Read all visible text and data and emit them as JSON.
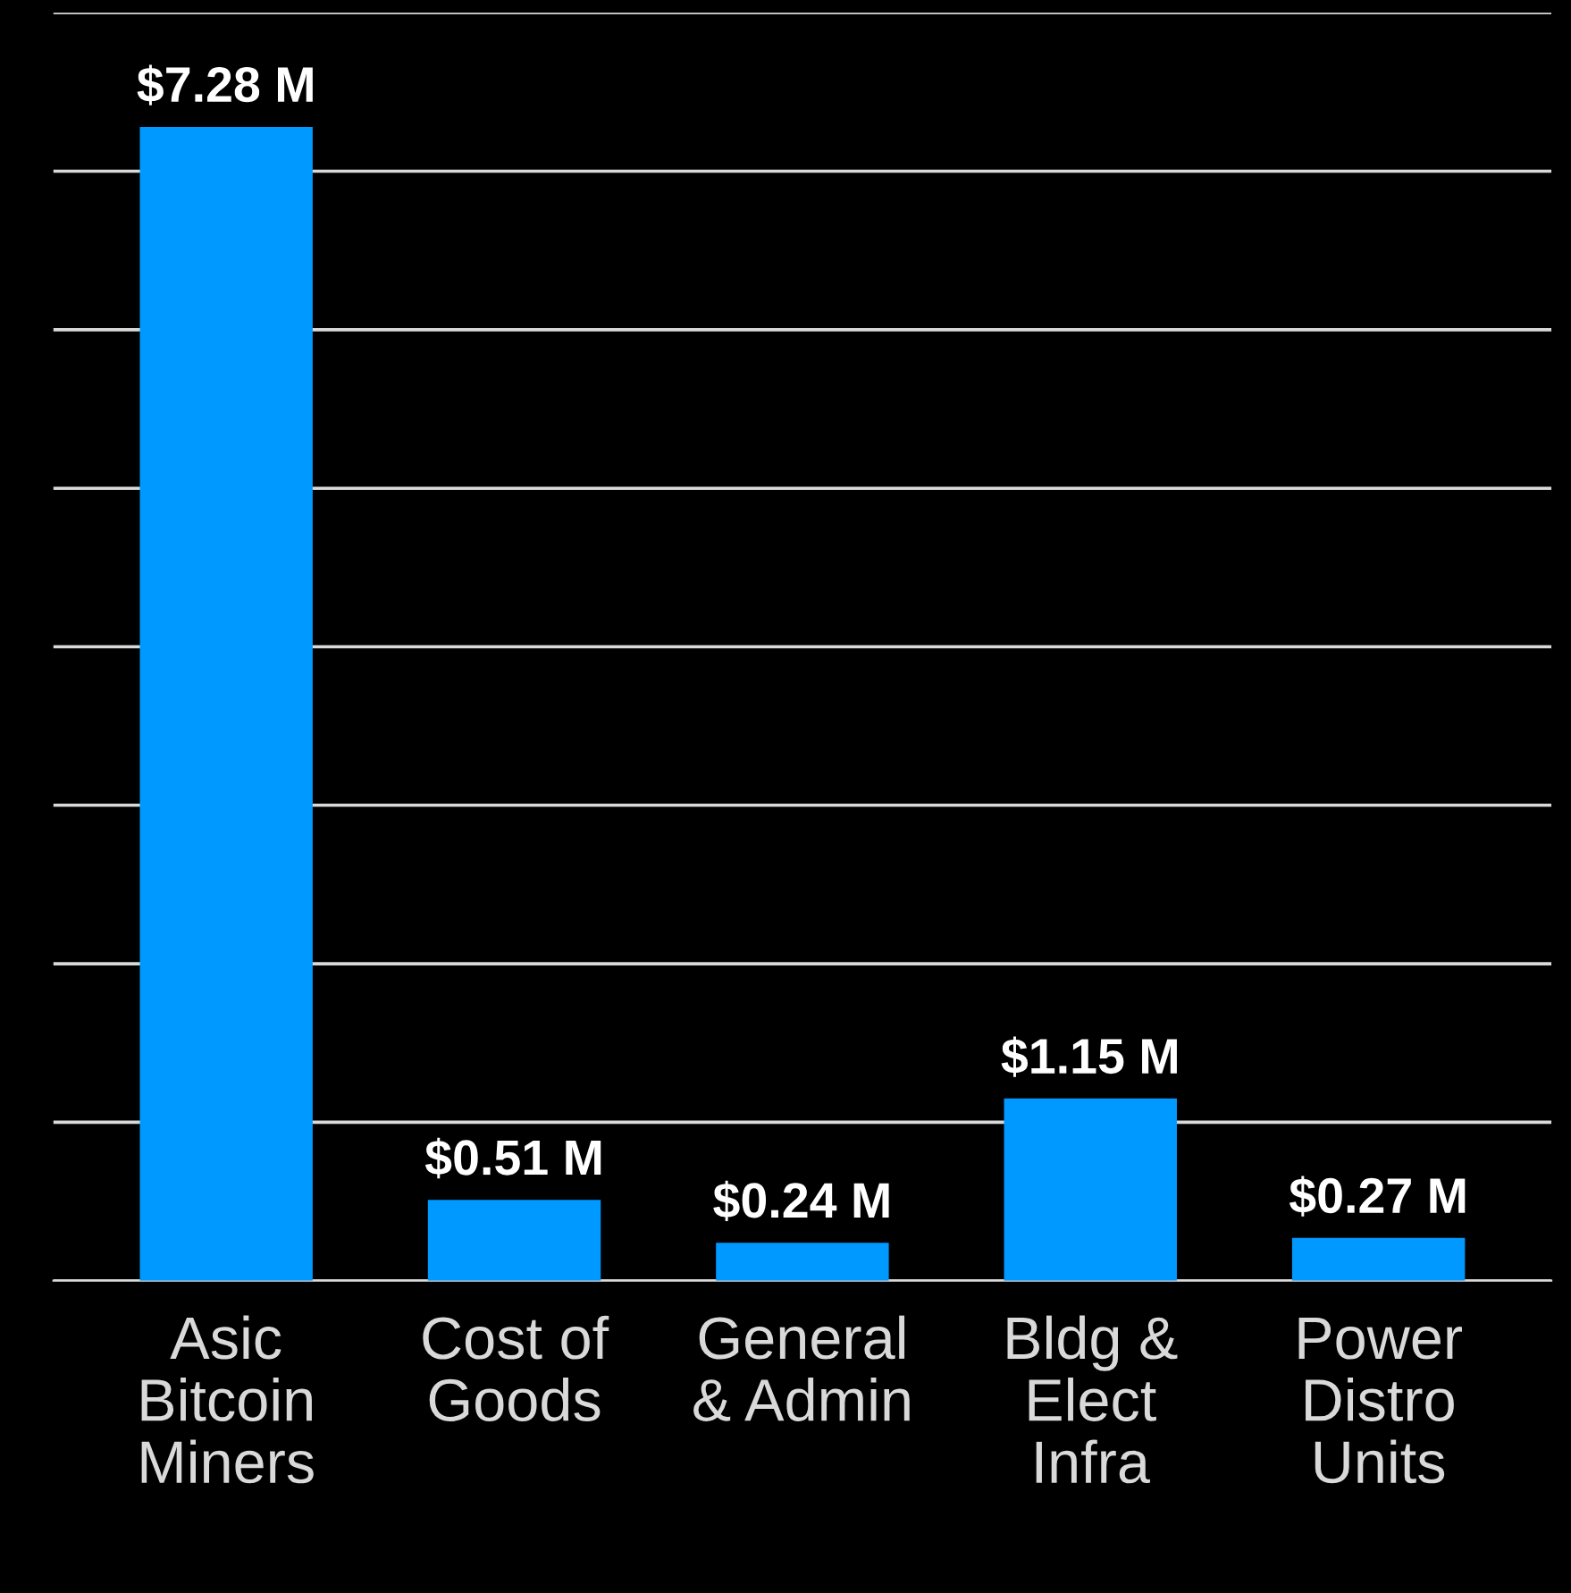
{
  "chart_data": {
    "type": "bar",
    "categories": [
      "Asic\nBitcoin\nMiners",
      "Cost of\nGoods",
      "General\n& Admin",
      "Bldg &\nElect\nInfra",
      "Power\nDistro\nUnits"
    ],
    "values": [
      7.28,
      0.51,
      0.24,
      1.15,
      0.27
    ],
    "value_labels": [
      "$7.28 M",
      "$0.51 M",
      "$0.24 M",
      "$1.15 M",
      "$0.27 M"
    ],
    "color": "#0099ff",
    "ylim": [
      0,
      8
    ],
    "yticks": [
      {
        "value": 0,
        "label": null
      },
      {
        "value": 1,
        "label": null
      },
      {
        "value": 2,
        "label": null
      },
      {
        "value": 3,
        "label": null
      },
      {
        "value": 4,
        "label": null
      },
      {
        "value": 5,
        "label": null
      },
      {
        "value": 6,
        "label": null
      },
      {
        "value": 7,
        "label": null
      },
      {
        "value": 8,
        "label": null
      }
    ],
    "grid": "y",
    "tick_labels": "x"
  }
}
